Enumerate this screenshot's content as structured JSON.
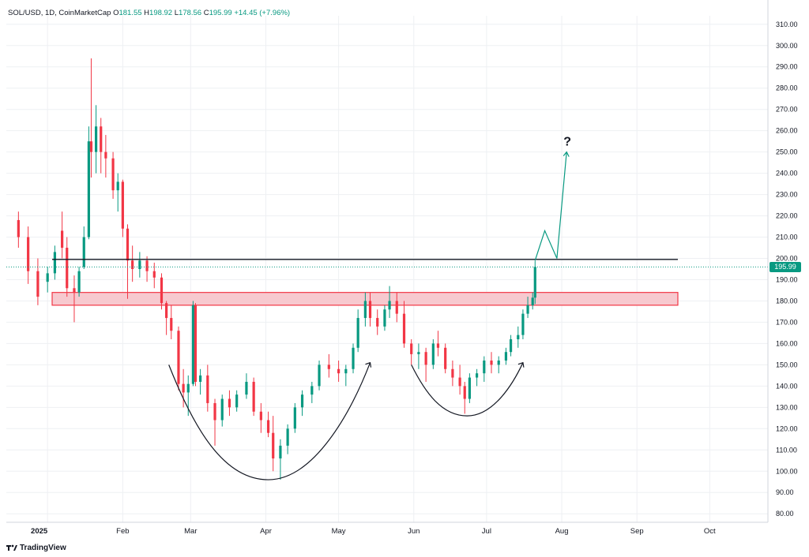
{
  "header": {
    "symbol": "SOL/USD, 1D, CoinMarketCap",
    "o_label": "O",
    "o_value": "181.55",
    "h_label": "H",
    "h_value": "198.92",
    "l_label": "L",
    "l_value": "178.56",
    "c_label": "C",
    "c_value": "195.99",
    "change": "+14.45 (+7.96%)"
  },
  "branding": {
    "name": "TradingView",
    "icon": "tradingview-logo-icon"
  },
  "last_price_label": "195.99",
  "annotation_text": "?",
  "colors": {
    "up": "#089981",
    "down": "#f23645",
    "zone_fill": "#f7c9cf",
    "zone_stroke": "#f23645",
    "resistance": "#131722",
    "projection": "#089981",
    "grid": "#eef0f3"
  },
  "chart_data": {
    "type": "candlestick",
    "title": "SOL/USD, 1D, CoinMarketCap",
    "xlabel": "",
    "ylabel": "",
    "x_ticks": [
      "2025",
      "Feb",
      "Mar",
      "Apr",
      "May",
      "Jun",
      "Jul",
      "Aug",
      "Sep",
      "Oct"
    ],
    "y_ticks": [
      80,
      90,
      100,
      110,
      120,
      130,
      140,
      150,
      160,
      170,
      180,
      190,
      200,
      210,
      220,
      230,
      240,
      250,
      260,
      270,
      280,
      290,
      300,
      310
    ],
    "ylim": [
      76,
      314
    ],
    "grid": true,
    "last_close": 195.99,
    "resistance_level": 199.5,
    "support_zone": [
      178,
      184
    ],
    "ohlc": [
      [
        "2024-12-20",
        218,
        222,
        205,
        210
      ],
      [
        "2024-12-24",
        210,
        215,
        188,
        194
      ],
      [
        "2024-12-28",
        194,
        200,
        178,
        182
      ],
      [
        "2025-01-01",
        189,
        196,
        184,
        193
      ],
      [
        "2025-01-04",
        193,
        206,
        190,
        203
      ],
      [
        "2025-01-07",
        213,
        222,
        200,
        205
      ],
      [
        "2025-01-09",
        205,
        210,
        182,
        186
      ],
      [
        "2025-01-12",
        186,
        192,
        170,
        184
      ],
      [
        "2025-01-14",
        184,
        196,
        182,
        194
      ],
      [
        "2025-01-16",
        196,
        215,
        195,
        210
      ],
      [
        "2025-01-18",
        210,
        262,
        209,
        255
      ],
      [
        "2025-01-19",
        255,
        294,
        238,
        250
      ],
      [
        "2025-01-21",
        250,
        272,
        240,
        262
      ],
      [
        "2025-01-23",
        262,
        266,
        240,
        250
      ],
      [
        "2025-01-25",
        250,
        258,
        238,
        247
      ],
      [
        "2025-01-28",
        247,
        250,
        228,
        232
      ],
      [
        "2025-01-30",
        232,
        240,
        222,
        236
      ],
      [
        "2025-02-01",
        236,
        237,
        210,
        214
      ],
      [
        "2025-02-03",
        214,
        216,
        181,
        199
      ],
      [
        "2025-02-05",
        199,
        206,
        189,
        195
      ],
      [
        "2025-02-08",
        195,
        203,
        191,
        199
      ],
      [
        "2025-02-11",
        199,
        201,
        189,
        194
      ],
      [
        "2025-02-14",
        194,
        198,
        186,
        191
      ],
      [
        "2025-02-17",
        191,
        193,
        176,
        179
      ],
      [
        "2025-02-19",
        179,
        180,
        164,
        172
      ],
      [
        "2025-02-21",
        172,
        178,
        162,
        166
      ],
      [
        "2025-02-24",
        166,
        168,
        138,
        141
      ],
      [
        "2025-02-26",
        141,
        148,
        130,
        137
      ],
      [
        "2025-02-28",
        137,
        145,
        126,
        141
      ],
      [
        "2025-03-02",
        141,
        180,
        140,
        178
      ],
      [
        "2025-03-03",
        178,
        179,
        140,
        142
      ],
      [
        "2025-03-05",
        142,
        148,
        136,
        145
      ],
      [
        "2025-03-08",
        145,
        150,
        128,
        132
      ],
      [
        "2025-03-11",
        132,
        134,
        112,
        124
      ],
      [
        "2025-03-14",
        124,
        136,
        121,
        134
      ],
      [
        "2025-03-17",
        134,
        138,
        126,
        130
      ],
      [
        "2025-03-20",
        130,
        138,
        128,
        136
      ],
      [
        "2025-03-24",
        136,
        146,
        134,
        142
      ],
      [
        "2025-03-27",
        142,
        144,
        126,
        128
      ],
      [
        "2025-03-30",
        128,
        132,
        118,
        124
      ],
      [
        "2025-04-02",
        124,
        128,
        116,
        118
      ],
      [
        "2025-04-04",
        118,
        126,
        100,
        106
      ],
      [
        "2025-04-07",
        106,
        115,
        96,
        112
      ],
      [
        "2025-04-10",
        112,
        122,
        108,
        120
      ],
      [
        "2025-04-13",
        120,
        132,
        118,
        130
      ],
      [
        "2025-04-16",
        130,
        138,
        126,
        136
      ],
      [
        "2025-04-20",
        136,
        142,
        132,
        140
      ],
      [
        "2025-04-23",
        140,
        152,
        138,
        150
      ],
      [
        "2025-04-27",
        150,
        155,
        144,
        148
      ],
      [
        "2025-05-01",
        148,
        152,
        142,
        146
      ],
      [
        "2025-05-04",
        146,
        150,
        140,
        148
      ],
      [
        "2025-05-07",
        148,
        160,
        146,
        158
      ],
      [
        "2025-05-09",
        158,
        176,
        156,
        172
      ],
      [
        "2025-05-12",
        172,
        184,
        168,
        180
      ],
      [
        "2025-05-14",
        180,
        184,
        168,
        172
      ],
      [
        "2025-05-17",
        172,
        176,
        164,
        168
      ],
      [
        "2025-05-20",
        168,
        178,
        166,
        176
      ],
      [
        "2025-05-22",
        176,
        187,
        172,
        180
      ],
      [
        "2025-05-25",
        180,
        184,
        170,
        174
      ],
      [
        "2025-05-28",
        174,
        180,
        158,
        160
      ],
      [
        "2025-05-31",
        160,
        162,
        150,
        155
      ],
      [
        "2025-06-03",
        155,
        160,
        148,
        156
      ],
      [
        "2025-06-06",
        156,
        158,
        142,
        150
      ],
      [
        "2025-06-09",
        150,
        162,
        148,
        160
      ],
      [
        "2025-06-11",
        160,
        166,
        154,
        158
      ],
      [
        "2025-06-14",
        158,
        160,
        146,
        148
      ],
      [
        "2025-06-17",
        148,
        152,
        140,
        144
      ],
      [
        "2025-06-20",
        144,
        150,
        136,
        140
      ],
      [
        "2025-06-22",
        140,
        142,
        127,
        134
      ],
      [
        "2025-06-24",
        134,
        146,
        132,
        144
      ],
      [
        "2025-06-27",
        144,
        148,
        140,
        146
      ],
      [
        "2025-06-30",
        146,
        154,
        142,
        152
      ],
      [
        "2025-07-03",
        152,
        156,
        146,
        150
      ],
      [
        "2025-07-06",
        150,
        154,
        146,
        152
      ],
      [
        "2025-07-09",
        152,
        158,
        150,
        156
      ],
      [
        "2025-07-11",
        156,
        164,
        154,
        162
      ],
      [
        "2025-07-14",
        162,
        168,
        158,
        164
      ],
      [
        "2025-07-16",
        164,
        176,
        162,
        174
      ],
      [
        "2025-07-18",
        174,
        182,
        172,
        178
      ],
      [
        "2025-07-20",
        178,
        184,
        176,
        181.55
      ],
      [
        "2025-07-21",
        181.55,
        198.92,
        178.56,
        195.99
      ]
    ],
    "projection_path": [
      [
        "2025-07-21",
        199
      ],
      [
        "2025-07-25",
        213
      ],
      [
        "2025-07-30",
        200
      ],
      [
        "2025-08-03",
        250
      ]
    ],
    "pattern_arcs": [
      {
        "from": [
          "2025-02-20",
          150
        ],
        "bottom": [
          "2025-04-02",
          96
        ],
        "to": [
          "2025-05-14",
          151
        ]
      },
      {
        "from": [
          "2025-05-31",
          150
        ],
        "bottom": [
          "2025-06-23",
          126
        ],
        "to": [
          "2025-07-16",
          151
        ]
      }
    ]
  }
}
